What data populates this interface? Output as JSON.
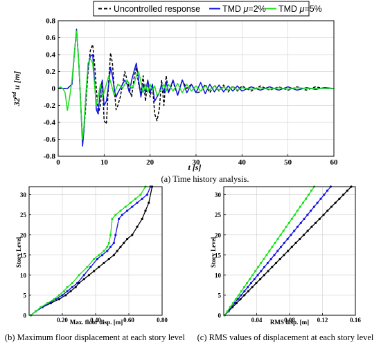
{
  "chart_data": [
    {
      "id": "a",
      "type": "line",
      "title": "(a) Time history analysis.",
      "xlabel": "t [s]",
      "ylabel": "32nd u [m]",
      "ylabel_parts": [
        "32",
        "nd",
        "u [m]"
      ],
      "xlim": [
        0,
        60
      ],
      "ylim": [
        -0.8,
        0.8
      ],
      "xticks": [
        0,
        10,
        20,
        30,
        40,
        50,
        60
      ],
      "yticks": [
        -0.8,
        -0.6,
        -0.4,
        -0.2,
        0,
        0.2,
        0.4,
        0.6,
        0.8
      ],
      "xtick_labels": [
        "0",
        "10",
        "20",
        "30",
        "40",
        "50",
        "60"
      ],
      "ytick_labels": [
        "-0.8",
        "-0.6",
        "-0.4",
        "-0.2",
        "0",
        "0.2",
        "0.4",
        "0.6",
        "0.8"
      ],
      "grid": true,
      "legend": {
        "placement": "top",
        "entries": [
          {
            "label": "Uncontrolled response",
            "color": "#000000",
            "dash": true
          },
          {
            "label_parts": [
              "TMD ",
              "μ",
              "=2%"
            ],
            "color": "#1010e0",
            "dash": false
          },
          {
            "label_parts": [
              "TMD ",
              "μ",
              "=5%"
            ],
            "color": "#18e018",
            "dash": false
          }
        ]
      },
      "series": [
        {
          "key": "uncontrolled",
          "color": "#000000",
          "dash": true,
          "x": [
            0,
            1,
            2,
            3,
            3.5,
            4,
            4.5,
            5,
            5.3,
            5.6,
            6,
            6.5,
            7,
            7.5,
            7.9,
            8.3,
            8.7,
            9.2,
            9.6,
            10,
            10.5,
            11,
            11.4,
            11.8,
            12.2,
            12.6,
            13,
            13.5,
            14,
            14.5,
            15,
            15.5,
            16,
            16.5,
            17,
            17.5,
            18,
            18.5,
            19,
            19.5,
            20,
            20.5,
            21,
            21.5,
            22,
            22.5,
            23,
            23.5,
            24,
            25,
            26,
            27,
            28,
            29,
            30,
            31,
            32,
            33,
            34,
            35,
            36,
            37,
            38,
            39,
            40,
            42,
            44,
            46,
            48,
            50,
            52,
            54,
            56,
            58,
            60
          ],
          "y": [
            0,
            0,
            0,
            0.05,
            0.4,
            0.68,
            0.3,
            -0.3,
            -0.6,
            -0.5,
            -0.2,
            0.2,
            0.45,
            0.52,
            0.3,
            0,
            -0.3,
            -0.2,
            0.1,
            -0.38,
            -0.42,
            0.1,
            0.42,
            0.3,
            0,
            -0.25,
            -0.2,
            -0.1,
            0.05,
            0.2,
            0.1,
            0,
            -0.1,
            0.12,
            0.25,
            0.05,
            -0.05,
            0.15,
            -0.15,
            0.1,
            -0.1,
            0.05,
            -0.3,
            -0.38,
            -0.25,
            0.1,
            -0.2,
            0.15,
            -0.05,
            0.08,
            -0.08,
            0.1,
            0,
            0.05,
            -0.05,
            -0.04,
            0.05,
            -0.05,
            0.04,
            -0.03,
            0.04,
            -0.04,
            0.03,
            -0.03,
            0.03,
            -0.03,
            0.03,
            -0.02,
            0.02,
            -0.02,
            0.02,
            -0.02,
            0.02,
            0,
            0
          ]
        },
        {
          "key": "tmd2",
          "color": "#1010e0",
          "dash": false,
          "x": [
            0,
            1,
            2,
            3,
            3.5,
            4,
            4.5,
            5,
            5.3,
            5.6,
            6,
            6.5,
            7,
            7.5,
            7.9,
            8.3,
            8.7,
            9.2,
            9.6,
            10,
            10.5,
            11,
            11.4,
            11.8,
            12.2,
            12.6,
            13,
            13.5,
            14,
            14.5,
            15,
            15.5,
            16,
            16.5,
            17,
            17.5,
            18,
            18.5,
            19,
            19.5,
            20,
            20.5,
            21,
            21.5,
            22,
            22.5,
            23,
            23.5,
            24,
            25,
            26,
            27,
            28,
            29,
            30,
            31,
            32,
            33,
            34,
            35,
            36,
            37,
            38,
            39,
            40,
            42,
            44,
            46,
            48,
            50,
            52,
            54,
            56,
            58,
            60
          ],
          "y": [
            0,
            0,
            0,
            0.05,
            0.4,
            0.7,
            0.3,
            -0.3,
            -0.68,
            -0.5,
            -0.1,
            0.25,
            0.38,
            0.4,
            0.1,
            -0.25,
            -0.3,
            0,
            0.1,
            -0.2,
            -0.15,
            0.05,
            0.25,
            0.15,
            0,
            -0.1,
            -0.05,
            0,
            0.05,
            0.1,
            0.05,
            -0.05,
            0.1,
            0.2,
            0.3,
            0.1,
            -0.1,
            0.05,
            -0.05,
            0.1,
            -0.05,
            0.05,
            -0.15,
            -0.1,
            -0.05,
            0.05,
            -0.05,
            0.08,
            -0.05,
            0.1,
            -0.08,
            0.1,
            -0.05,
            0.05,
            -0.05,
            0.07,
            -0.06,
            0.05,
            -0.04,
            0.04,
            -0.04,
            0.03,
            -0.03,
            0.03,
            -0.03,
            0.02,
            -0.02,
            0.02,
            -0.02,
            0.02,
            -0.02,
            0.01,
            -0.01,
            0.01,
            0
          ]
        },
        {
          "key": "tmd5",
          "color": "#18e018",
          "dash": false,
          "x": [
            0,
            0.5,
            1,
            1.5,
            2,
            2.5,
            3,
            3.5,
            4,
            4.5,
            5,
            5.3,
            5.6,
            6,
            6.5,
            7,
            7.5,
            7.9,
            8.3,
            8.7,
            9.2,
            9.6,
            10,
            10.5,
            11,
            11.4,
            11.8,
            12.2,
            12.6,
            13,
            13.5,
            14,
            14.5,
            15,
            15.5,
            16,
            16.5,
            17,
            17.5,
            18,
            18.5,
            19,
            19.5,
            20,
            20.5,
            21,
            21.5,
            22,
            22.5,
            23,
            23.5,
            24,
            25,
            26,
            27,
            28,
            29,
            30,
            31,
            32,
            33,
            34,
            35,
            36,
            37,
            38,
            39,
            40,
            42,
            44,
            46,
            48,
            50,
            52,
            54,
            56,
            58,
            60
          ],
          "y": [
            0,
            0.02,
            0,
            -0.05,
            -0.26,
            -0.1,
            0.1,
            0.4,
            0.68,
            0.3,
            -0.3,
            -0.6,
            -0.45,
            -0.1,
            0.3,
            0.35,
            0.3,
            0.05,
            -0.2,
            -0.1,
            0.05,
            -0.1,
            -0.05,
            0.05,
            0.15,
            0.08,
            0,
            -0.08,
            0,
            0.05,
            0.03,
            0,
            0.05,
            0.1,
            0.05,
            0,
            0.05,
            0.15,
            0.2,
            0.08,
            -0.05,
            0.05,
            -0.05,
            0.05,
            -0.02,
            0.03,
            -0.08,
            -0.05,
            0,
            0.05,
            -0.03,
            0.05,
            -0.03,
            0.06,
            -0.05,
            0.05,
            -0.03,
            0.03,
            -0.03,
            0.03,
            -0.02,
            0.03,
            -0.02,
            0.02,
            -0.02,
            0.02,
            -0.02,
            0.01,
            -0.01,
            0.01,
            -0.01,
            0.01,
            -0.01,
            0.01,
            0,
            0,
            0,
            0
          ]
        }
      ]
    },
    {
      "id": "b",
      "type": "line",
      "title": "(b) Maximum floor displacement at each story level",
      "xlabel": "Max. floor disp. [m]",
      "ylabel": "Story Level",
      "xlim": [
        0,
        0.8
      ],
      "ylim": [
        0,
        32
      ],
      "xticks": [
        0.2,
        0.4,
        0.6,
        0.8
      ],
      "yticks": [
        0,
        5,
        10,
        15,
        20,
        25,
        30
      ],
      "xtick_labels": [
        "0.20",
        "0.40",
        "0.60",
        "0.80"
      ],
      "ytick_labels": [
        "0",
        "5",
        "10",
        "15",
        "20",
        "25",
        "30"
      ],
      "grid": true,
      "series": [
        {
          "key": "uncontrolled",
          "color": "#000000",
          "marker": true,
          "x": [
            0.01,
            0.04,
            0.08,
            0.13,
            0.18,
            0.22,
            0.25,
            0.28,
            0.3,
            0.33,
            0.36,
            0.39,
            0.42,
            0.45,
            0.48,
            0.51,
            0.53,
            0.55,
            0.57,
            0.59,
            0.62,
            0.65,
            0.68,
            0.7,
            0.72,
            0.74
          ],
          "y": [
            0,
            1,
            2,
            3,
            4,
            5,
            6,
            7,
            8,
            9,
            10,
            11,
            12,
            13,
            14,
            15,
            16,
            17,
            18,
            19,
            20,
            22,
            24,
            26,
            28,
            32
          ]
        },
        {
          "key": "tmd2",
          "color": "#1010e0",
          "marker": true,
          "x": [
            0.01,
            0.04,
            0.08,
            0.12,
            0.16,
            0.2,
            0.23,
            0.26,
            0.29,
            0.33,
            0.37,
            0.41,
            0.44,
            0.47,
            0.49,
            0.51,
            0.52,
            0.54,
            0.56,
            0.59,
            0.62,
            0.65,
            0.68,
            0.71,
            0.73
          ],
          "y": [
            0,
            1,
            2,
            3,
            4,
            5,
            6,
            7,
            8,
            10,
            12,
            14,
            15,
            16,
            17,
            18,
            20,
            24,
            25,
            26,
            27,
            28,
            29,
            30,
            32
          ]
        },
        {
          "key": "tmd5",
          "color": "#18e018",
          "marker": true,
          "x": [
            0.01,
            0.04,
            0.07,
            0.11,
            0.15,
            0.18,
            0.21,
            0.23,
            0.26,
            0.3,
            0.35,
            0.39,
            0.42,
            0.45,
            0.47,
            0.48,
            0.49,
            0.5,
            0.52,
            0.55,
            0.58,
            0.61,
            0.64,
            0.67,
            0.7
          ],
          "y": [
            0,
            1,
            2,
            3,
            4,
            5,
            6,
            7,
            8,
            10,
            12,
            14,
            15,
            16,
            17,
            18,
            20,
            24,
            25,
            26,
            27,
            28,
            29,
            30,
            32
          ]
        }
      ]
    },
    {
      "id": "c",
      "type": "line",
      "title": "(c) RMS values of displacement at each story level",
      "xlabel": "RMS disp. [m]",
      "ylabel": "Story Level",
      "xlim": [
        0,
        0.16
      ],
      "ylim": [
        0,
        32
      ],
      "xticks": [
        0.04,
        0.08,
        0.12,
        0.16
      ],
      "yticks": [
        0,
        5,
        10,
        15,
        20,
        25,
        30
      ],
      "xtick_labels": [
        "0.04",
        "0.08",
        "0.12",
        "0.16"
      ],
      "ytick_labels": [
        "0",
        "5",
        "10",
        "15",
        "20",
        "25",
        "30"
      ],
      "grid": true,
      "series": [
        {
          "key": "uncontrolled",
          "color": "#000000",
          "marker": true,
          "x": [
            0.001,
            0.155
          ],
          "y": [
            0,
            32
          ]
        },
        {
          "key": "tmd2",
          "color": "#1010e0",
          "marker": true,
          "x": [
            0.001,
            0.13
          ],
          "y": [
            0,
            32
          ]
        },
        {
          "key": "tmd5",
          "color": "#18e018",
          "marker": true,
          "x": [
            0.001,
            0.11
          ],
          "y": [
            0,
            32
          ]
        }
      ]
    }
  ]
}
